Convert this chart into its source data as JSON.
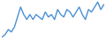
{
  "values": [
    1,
    2,
    4,
    3,
    5,
    9,
    13,
    10,
    8,
    10,
    8,
    10,
    9,
    8,
    11,
    9,
    10,
    8,
    12,
    10,
    9,
    12,
    11,
    9,
    11,
    13,
    10,
    8,
    12,
    11,
    13,
    15,
    12,
    14
  ],
  "line_color": "#4a90d4",
  "background_color": "#ffffff",
  "linewidth": 1.0
}
